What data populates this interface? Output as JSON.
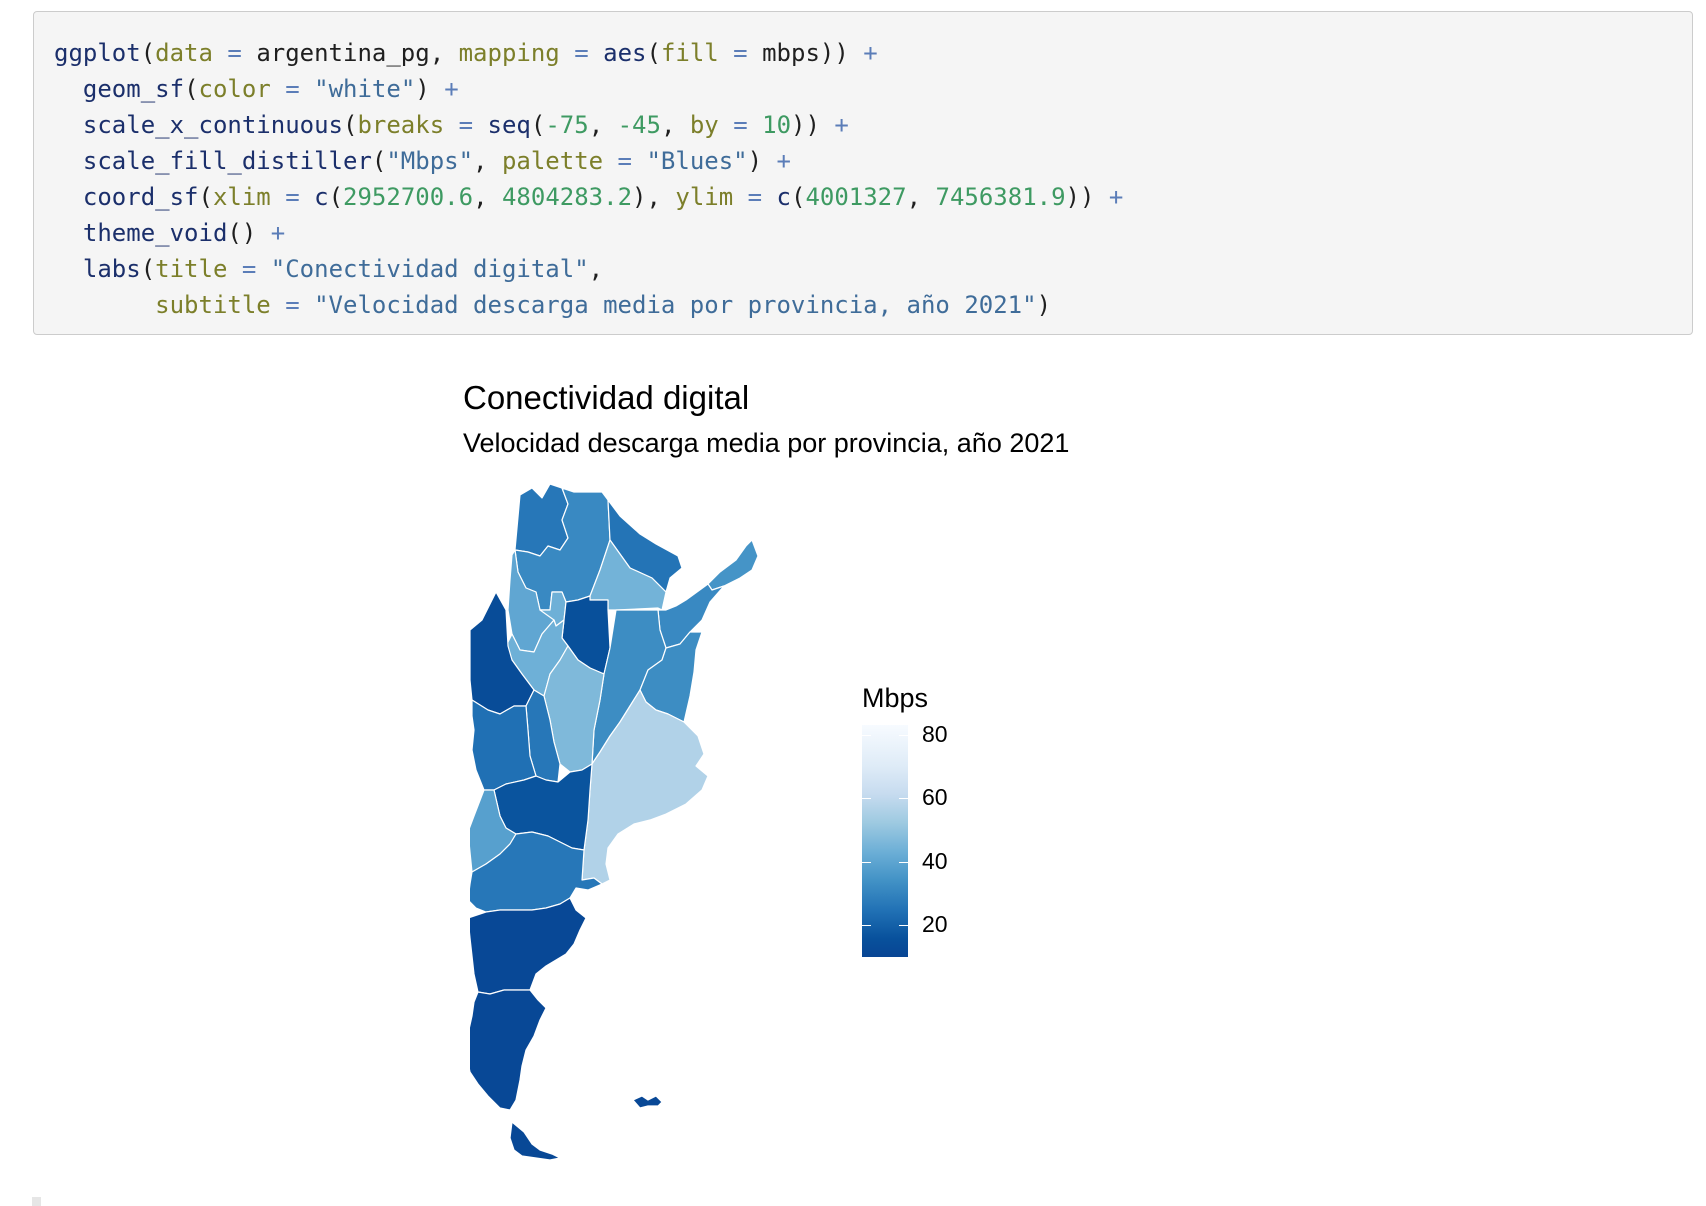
{
  "code": {
    "lines": [
      [
        {
          "t": "ggplot",
          "c": "fn"
        },
        {
          "t": "(",
          "c": "pl"
        },
        {
          "t": "data",
          "c": "arg"
        },
        {
          "t": " = ",
          "c": "op"
        },
        {
          "t": "argentina_pg",
          "c": "pl"
        },
        {
          "t": ", ",
          "c": "pl"
        },
        {
          "t": "mapping",
          "c": "arg"
        },
        {
          "t": " = ",
          "c": "op"
        },
        {
          "t": "aes",
          "c": "fn"
        },
        {
          "t": "(",
          "c": "pl"
        },
        {
          "t": "fill",
          "c": "arg"
        },
        {
          "t": " = ",
          "c": "op"
        },
        {
          "t": "mbps",
          "c": "pl"
        },
        {
          "t": ")) ",
          "c": "pl"
        },
        {
          "t": "+",
          "c": "op"
        }
      ],
      [
        {
          "t": "  ",
          "c": "pl"
        },
        {
          "t": "geom_sf",
          "c": "fn"
        },
        {
          "t": "(",
          "c": "pl"
        },
        {
          "t": "color",
          "c": "arg"
        },
        {
          "t": " = ",
          "c": "op"
        },
        {
          "t": "\"white\"",
          "c": "str"
        },
        {
          "t": ") ",
          "c": "pl"
        },
        {
          "t": "+",
          "c": "op"
        }
      ],
      [
        {
          "t": "  ",
          "c": "pl"
        },
        {
          "t": "scale_x_continuous",
          "c": "fn"
        },
        {
          "t": "(",
          "c": "pl"
        },
        {
          "t": "breaks",
          "c": "arg"
        },
        {
          "t": " = ",
          "c": "op"
        },
        {
          "t": "seq",
          "c": "fn"
        },
        {
          "t": "(",
          "c": "pl"
        },
        {
          "t": "-75",
          "c": "num"
        },
        {
          "t": ", ",
          "c": "pl"
        },
        {
          "t": "-45",
          "c": "num"
        },
        {
          "t": ", ",
          "c": "pl"
        },
        {
          "t": "by",
          "c": "arg"
        },
        {
          "t": " = ",
          "c": "op"
        },
        {
          "t": "10",
          "c": "num"
        },
        {
          "t": ")) ",
          "c": "pl"
        },
        {
          "t": "+",
          "c": "op"
        }
      ],
      [
        {
          "t": "  ",
          "c": "pl"
        },
        {
          "t": "scale_fill_distiller",
          "c": "fn"
        },
        {
          "t": "(",
          "c": "pl"
        },
        {
          "t": "\"Mbps\"",
          "c": "str"
        },
        {
          "t": ", ",
          "c": "pl"
        },
        {
          "t": "palette",
          "c": "arg"
        },
        {
          "t": " = ",
          "c": "op"
        },
        {
          "t": "\"Blues\"",
          "c": "str"
        },
        {
          "t": ") ",
          "c": "pl"
        },
        {
          "t": "+",
          "c": "op"
        }
      ],
      [
        {
          "t": "  ",
          "c": "pl"
        },
        {
          "t": "coord_sf",
          "c": "fn"
        },
        {
          "t": "(",
          "c": "pl"
        },
        {
          "t": "xlim",
          "c": "arg"
        },
        {
          "t": " = ",
          "c": "op"
        },
        {
          "t": "c",
          "c": "fn"
        },
        {
          "t": "(",
          "c": "pl"
        },
        {
          "t": "2952700.6",
          "c": "num"
        },
        {
          "t": ", ",
          "c": "pl"
        },
        {
          "t": "4804283.2",
          "c": "num"
        },
        {
          "t": "), ",
          "c": "pl"
        },
        {
          "t": "ylim",
          "c": "arg"
        },
        {
          "t": " = ",
          "c": "op"
        },
        {
          "t": "c",
          "c": "fn"
        },
        {
          "t": "(",
          "c": "pl"
        },
        {
          "t": "4001327",
          "c": "num"
        },
        {
          "t": ", ",
          "c": "pl"
        },
        {
          "t": "7456381.9",
          "c": "num"
        },
        {
          "t": ")) ",
          "c": "pl"
        },
        {
          "t": "+",
          "c": "op"
        }
      ],
      [
        {
          "t": "  ",
          "c": "pl"
        },
        {
          "t": "theme_void",
          "c": "fn"
        },
        {
          "t": "() ",
          "c": "pl"
        },
        {
          "t": "+",
          "c": "op"
        }
      ],
      [
        {
          "t": "  ",
          "c": "pl"
        },
        {
          "t": "labs",
          "c": "fn"
        },
        {
          "t": "(",
          "c": "pl"
        },
        {
          "t": "title",
          "c": "arg"
        },
        {
          "t": " = ",
          "c": "op"
        },
        {
          "t": "\"Conectividad digital\"",
          "c": "str"
        },
        {
          "t": ",",
          "c": "pl"
        }
      ],
      [
        {
          "t": "       ",
          "c": "pl"
        },
        {
          "t": "subtitle",
          "c": "arg"
        },
        {
          "t": " = ",
          "c": "op"
        },
        {
          "t": "\"Velocidad descarga media por provincia, año 2021\"",
          "c": "str"
        },
        {
          "t": ")",
          "c": "pl"
        }
      ]
    ]
  },
  "plot": {
    "title": "Conectividad digital",
    "subtitle": "Velocidad descarga media por provincia, año 2021"
  },
  "legend": {
    "title": "Mbps",
    "ticks": [
      {
        "value": 80,
        "label": "80"
      },
      {
        "value": 60,
        "label": "60"
      },
      {
        "value": 40,
        "label": "40"
      },
      {
        "value": 20,
        "label": "20"
      }
    ],
    "min": 10,
    "max": 83,
    "palette": "Blues",
    "colors": [
      "#f7fbff",
      "#deebf7",
      "#c6dbef",
      "#9ecae1",
      "#6baed6",
      "#4292c6",
      "#2171b5",
      "#08519c",
      "#084594"
    ]
  },
  "map": {
    "stroke": "#ffffff",
    "shapes": [
      {
        "name": "province-jujuy",
        "mbps": 30
      },
      {
        "name": "province-salta",
        "mbps": 35
      },
      {
        "name": "province-formosa",
        "mbps": 29
      },
      {
        "name": "province-chaco",
        "mbps": 48
      },
      {
        "name": "province-catamarca",
        "mbps": 44
      },
      {
        "name": "province-tucuman",
        "mbps": 47
      },
      {
        "name": "province-santiago-del-estero",
        "mbps": 18
      },
      {
        "name": "province-misiones",
        "mbps": 38
      },
      {
        "name": "province-corrientes",
        "mbps": 35
      },
      {
        "name": "province-la-rioja",
        "mbps": 47
      },
      {
        "name": "province-san-juan",
        "mbps": 15
      },
      {
        "name": "province-santa-fe",
        "mbps": 36
      },
      {
        "name": "province-entre-rios",
        "mbps": 36
      },
      {
        "name": "province-cordoba",
        "mbps": 50
      },
      {
        "name": "province-san-luis",
        "mbps": 30
      },
      {
        "name": "province-mendoza",
        "mbps": 28
      },
      {
        "name": "province-buenos-aires",
        "mbps": 60
      },
      {
        "name": "province-la-pampa",
        "mbps": 20
      },
      {
        "name": "province-neuquen",
        "mbps": 42
      },
      {
        "name": "province-rio-negro",
        "mbps": 30
      },
      {
        "name": "province-chubut",
        "mbps": 12
      },
      {
        "name": "province-santa-cruz",
        "mbps": 12
      },
      {
        "name": "province-tierra-del-fuego",
        "mbps": 12
      },
      {
        "name": "province-malvinas",
        "mbps": 12
      }
    ]
  }
}
